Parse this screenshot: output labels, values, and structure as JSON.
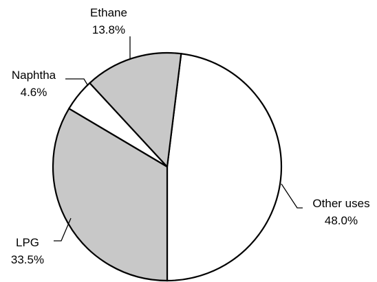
{
  "chart_data": {
    "type": "pie",
    "title": "",
    "slices": [
      {
        "label": "Other uses",
        "value": 48.0,
        "value_label": "48.0%",
        "color": "#ffffff"
      },
      {
        "label": "LPG",
        "value": 33.5,
        "value_label": "33.5%",
        "color": "#c8c8c8"
      },
      {
        "label": "Naphtha",
        "value": 4.6,
        "value_label": "4.6%",
        "color": "#ffffff"
      },
      {
        "label": "Ethane",
        "value": 13.8,
        "value_label": "13.8%",
        "color": "#c8c8c8"
      }
    ],
    "outline_color": "#000000",
    "legend": "none"
  }
}
